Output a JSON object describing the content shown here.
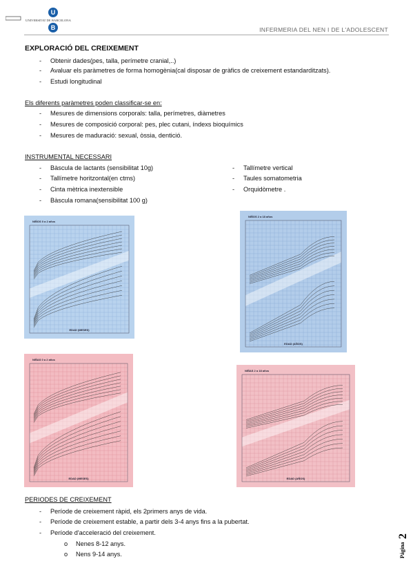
{
  "header": {
    "logo_letters": [
      "U",
      "B"
    ],
    "university": "UNIVERSITAT DE BARCELONA",
    "course": "INFERMERIA DEL NEN I DE L'ADOLESCENT"
  },
  "sections": [
    {
      "title": "EXPLORACIÓ DEL CREIXEMENT",
      "items": [
        "Obtenir dades(pes, talla, perímetre cranial,..)",
        "Avaluar els paràmetres de forma homogènia(cal disposar de gràfics de creixement estandarditzats).",
        "Estudi longitudinal"
      ]
    },
    {
      "title": "Els diferents paràmetres poden classificar-se en:",
      "items": [
        "Mesures de dimensions corporals: talla, perímetres, diàmetres",
        "Mesures de composició corporal: pes, plec cutani, índexs bioquímics",
        "Mesures de maduració: sexual, òssia, dentició."
      ]
    },
    {
      "title": "INSTRUMENTAL NECESSARI",
      "items_left": [
        "Bàscula de lactants (sensibilitat 10g)",
        "Tallímetre horitzontal(en ctms)",
        "Cinta mètrica inextensible",
        "Bàscula romana(sensibilitat 100 g)"
      ],
      "items_right": [
        "Tallímetre vertical",
        "Taules somatometria",
        "Orquidòmetre ."
      ]
    }
  ],
  "growth_charts": [
    {
      "title": "NIÑOS 0 a 2 años",
      "axis": "EDAD (MESES)"
    },
    {
      "title": "NIÑOS 2 a 18 años",
      "axis": "EDAD (AÑOS)"
    },
    {
      "title": "NIÑAS 0 a 2 años",
      "axis": "EDAD (MESES)"
    },
    {
      "title": "NIÑAS 2 a 18 años",
      "axis": "EDAD (AÑOS)"
    }
  ],
  "periods": {
    "title": "PERIODES DE CREIXEMENT",
    "items": [
      "Període de creixement ràpid, els 2primers anys de vida.",
      "Període de creixement estable, a partir dels 3-4 anys fins a la pubertat.",
      "Període d'acceleració del creixement."
    ],
    "subitems": [
      "Nenes 8-12 anys.",
      "Nens 9-14 anys."
    ]
  },
  "footer": {
    "page_word": "Página",
    "page_number": "2"
  }
}
